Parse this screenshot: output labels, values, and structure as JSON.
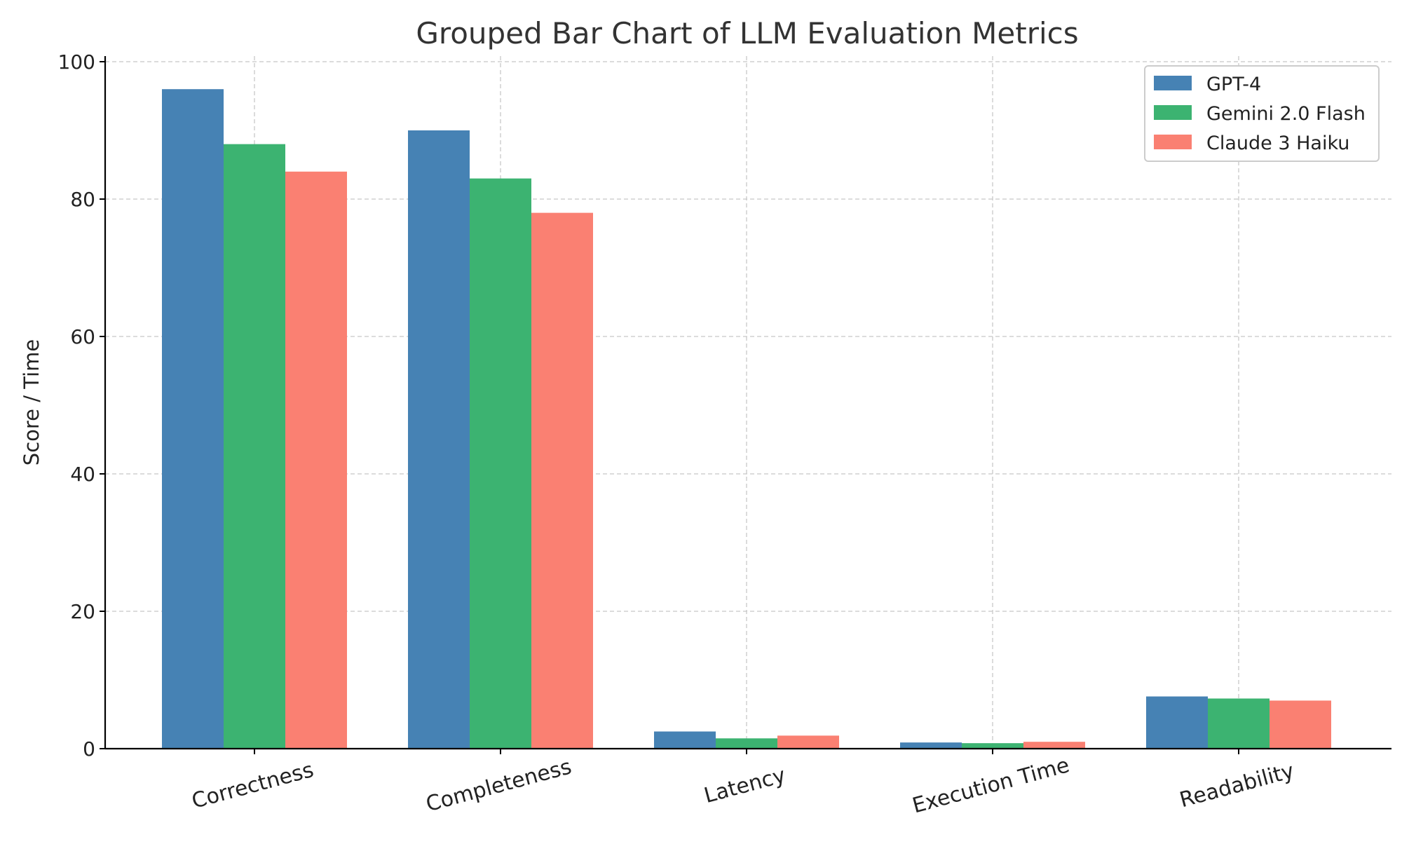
{
  "chart_data": {
    "type": "bar",
    "title": "Grouped Bar Chart of LLM Evaluation Metrics",
    "xlabel": "",
    "ylabel": "Score / Time",
    "categories": [
      "Correctness",
      "Completeness",
      "Latency",
      "Execution Time",
      "Readability"
    ],
    "series": [
      {
        "name": "GPT-4",
        "color": "#4682b4",
        "values": [
          96,
          90,
          2.5,
          0.9,
          7.6
        ]
      },
      {
        "name": "Gemini 2.0 Flash",
        "color": "#3cb371",
        "values": [
          88,
          83,
          1.5,
          0.8,
          7.3
        ]
      },
      {
        "name": "Claude 3 Haiku",
        "color": "#fa8072",
        "values": [
          84,
          78,
          1.9,
          1.0,
          7.0
        ]
      }
    ],
    "ylim": [
      0,
      100
    ],
    "yticks": [
      0,
      20,
      40,
      60,
      80,
      100
    ],
    "xtick_rotation_deg": -15,
    "grid": true,
    "legend_position": "top-right"
  }
}
